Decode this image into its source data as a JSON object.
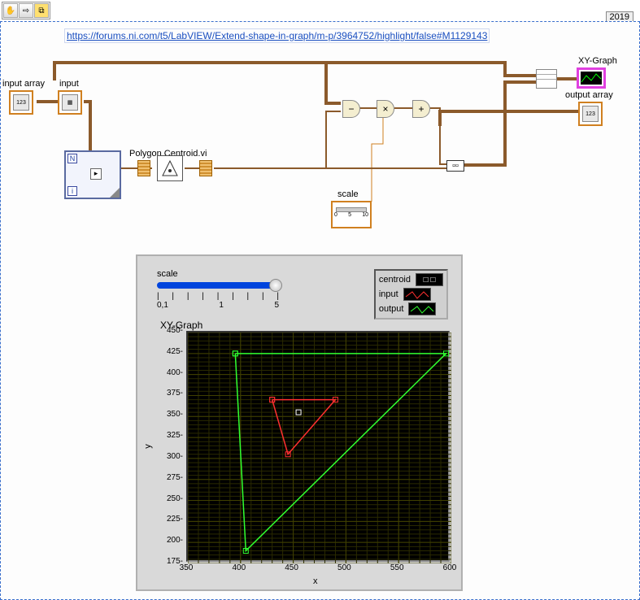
{
  "year": "2019",
  "url": "https://forums.ni.com/t5/LabVIEW/Extend-shape-in-graph/m-p/3964752/highlight/false#M1129143",
  "labels": {
    "input_array": "input array",
    "input": "input",
    "poly_vi": "Polygon Centroid.vi",
    "scale": "scale",
    "xy_graph": "XY-Graph",
    "output_array": "output array"
  },
  "operators": {
    "sub": "−",
    "mul": "×",
    "add": "+"
  },
  "front_panel": {
    "slider": {
      "label": "scale",
      "ticks": [
        "0,1",
        "1",
        "5"
      ]
    },
    "legend": [
      {
        "name": "centroid",
        "mode": "point",
        "color": "#ffffff"
      },
      {
        "name": "input",
        "mode": "line",
        "color": "#ff3030"
      },
      {
        "name": "output",
        "mode": "line",
        "color": "#30ff30"
      }
    ],
    "graph_title": "XY-Graph",
    "xlabel": "x",
    "ylabel": "y",
    "xlim": [
      350,
      600
    ],
    "xtick_step": 50,
    "ylim": [
      175,
      450
    ],
    "ytick_step": 25,
    "grid_color": "#404000",
    "minor_grid_color": "#2a2a00",
    "series": {
      "centroid": {
        "color": "#ffffff",
        "points": [
          [
            455,
            355
          ]
        ]
      },
      "input": {
        "color": "#ff3030",
        "points": [
          [
            430,
            370
          ],
          [
            490,
            370
          ],
          [
            445,
            305
          ],
          [
            430,
            370
          ]
        ]
      },
      "output": {
        "color": "#30ff30",
        "points": [
          [
            395,
            425
          ],
          [
            595,
            425
          ],
          [
            405,
            190
          ],
          [
            395,
            425
          ]
        ]
      }
    }
  }
}
